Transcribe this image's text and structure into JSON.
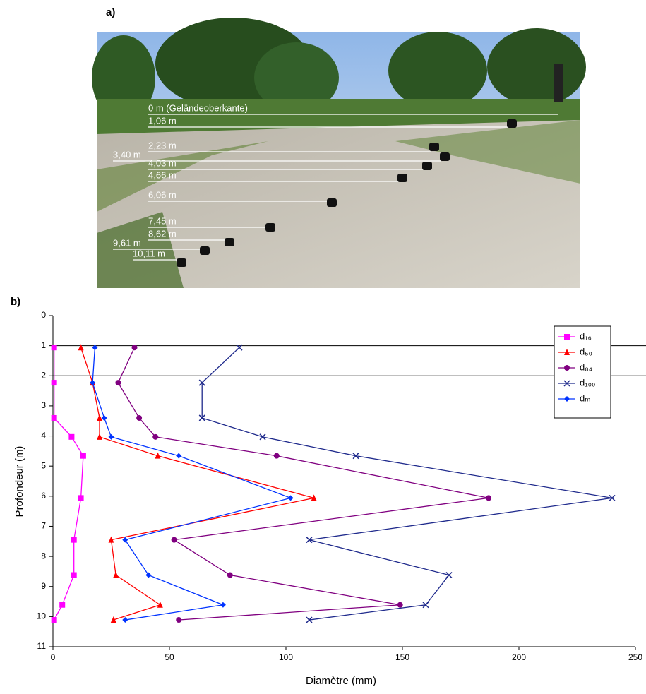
{
  "panel_a": {
    "label": "a)",
    "depth_labels": [
      "0 m (Geländeoberkante)",
      "1,06 m",
      "2,23 m",
      "3,40 m",
      "4,03 m",
      "4,66 m",
      "6,06 m",
      "7,45 m",
      "8,62 m",
      "9,61 m",
      "10,11 m"
    ]
  },
  "panel_b": {
    "label": "b)"
  },
  "chart_data": {
    "type": "line",
    "x_label": "Diamètre (mm)",
    "y_label": "Profondeur (m)",
    "y": [
      1.06,
      2.23,
      3.4,
      4.03,
      4.66,
      6.06,
      7.45,
      8.62,
      9.61,
      10.11
    ],
    "series": [
      {
        "name": "d₁₆",
        "color": "#ff00ff",
        "marker": "square",
        "values": [
          0.5,
          0.5,
          0.5,
          8,
          13,
          12,
          9,
          9,
          4,
          0.5
        ]
      },
      {
        "name": "d₅₀",
        "color": "#ff0000",
        "marker": "triangle",
        "values": [
          12,
          17,
          20,
          20,
          45,
          112,
          25,
          27,
          46,
          26
        ]
      },
      {
        "name": "d₈₄",
        "color": "#800080",
        "marker": "circle",
        "values": [
          35,
          28,
          37,
          44,
          96,
          187,
          52,
          76,
          149,
          54
        ]
      },
      {
        "name": "d₁₀₀",
        "color": "#1f2a8c",
        "marker": "x",
        "values": [
          80,
          64,
          64,
          90,
          130,
          240,
          110,
          170,
          160,
          110
        ]
      },
      {
        "name": "dₘ",
        "color": "#0033ff",
        "marker": "diamond",
        "values": [
          18,
          17,
          22,
          25,
          54,
          102,
          31,
          41,
          73,
          31
        ]
      }
    ],
    "xlim": [
      0,
      250
    ],
    "xticks": [
      0,
      50,
      100,
      150,
      200,
      250
    ],
    "ylim": [
      11,
      0
    ],
    "yticks": [
      0,
      1,
      2,
      3,
      4,
      5,
      6,
      7,
      8,
      9,
      10,
      11
    ],
    "hlines": [
      1,
      2
    ],
    "legend": "upper right"
  }
}
